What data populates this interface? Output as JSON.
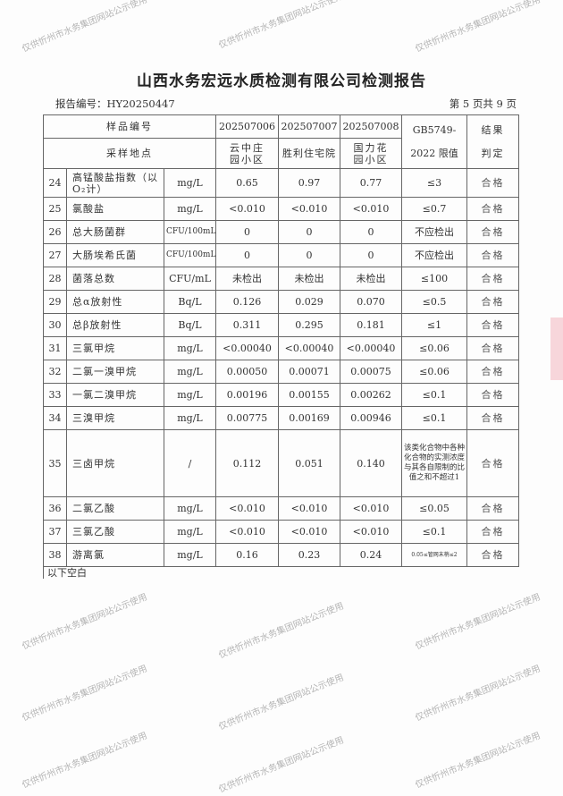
{
  "title": "山西水务宏远水质检测有限公司检测报告",
  "report_no": "报告编号：HY20250447",
  "page_no": "第 5 页共 9 页",
  "header": {
    "sample_no": "样品编号",
    "site": "采样地点",
    "samples": [
      "202507006",
      "202507007",
      "202507008"
    ],
    "sites": [
      "云中庄园小区",
      "胜利住宅院",
      "国力花园小区"
    ],
    "limit_1": "GB5749-",
    "limit_2": "2022 限值",
    "result_1": "结果",
    "result_2": "判定"
  },
  "rows": [
    {
      "no": "24",
      "item": "高锰酸盐指数（以O₂计）",
      "unit": "mg/L",
      "v": [
        "0.65",
        "0.97",
        "0.77"
      ],
      "limit": "≤3",
      "result": "合格"
    },
    {
      "no": "25",
      "item": "氯酸盐",
      "unit": "mg/L",
      "v": [
        "<0.010",
        "<0.010",
        "<0.010"
      ],
      "limit": "≤0.7",
      "result": "合格"
    },
    {
      "no": "26",
      "item": "总大肠菌群",
      "unit": "CFU/100mL",
      "v": [
        "0",
        "0",
        "0"
      ],
      "limit": "不应检出",
      "result": "合格"
    },
    {
      "no": "27",
      "item": "大肠埃希氏菌",
      "unit": "CFU/100mL",
      "v": [
        "0",
        "0",
        "0"
      ],
      "limit": "不应检出",
      "result": "合格"
    },
    {
      "no": "28",
      "item": "菌落总数",
      "unit": "CFU/mL",
      "v": [
        "未检出",
        "未检出",
        "未检出"
      ],
      "limit": "≤100",
      "result": "合格"
    },
    {
      "no": "29",
      "item": "总α放射性",
      "unit": "Bq/L",
      "v": [
        "0.126",
        "0.029",
        "0.070"
      ],
      "limit": "≤0.5",
      "result": "合格"
    },
    {
      "no": "30",
      "item": "总β放射性",
      "unit": "Bq/L",
      "v": [
        "0.311",
        "0.295",
        "0.181"
      ],
      "limit": "≤1",
      "result": "合格"
    },
    {
      "no": "31",
      "item": "三氯甲烷",
      "unit": "mg/L",
      "v": [
        "<0.00040",
        "<0.00040",
        "<0.00040"
      ],
      "limit": "≤0.06",
      "result": "合格"
    },
    {
      "no": "32",
      "item": "二氯一溴甲烷",
      "unit": "mg/L",
      "v": [
        "0.00050",
        "0.00071",
        "0.00075"
      ],
      "limit": "≤0.06",
      "result": "合格"
    },
    {
      "no": "33",
      "item": "一氯二溴甲烷",
      "unit": "mg/L",
      "v": [
        "0.00196",
        "0.00155",
        "0.00262"
      ],
      "limit": "≤0.1",
      "result": "合格"
    },
    {
      "no": "34",
      "item": "三溴甲烷",
      "unit": "mg/L",
      "v": [
        "0.00775",
        "0.00169",
        "0.00946"
      ],
      "limit": "≤0.1",
      "result": "合格"
    },
    {
      "no": "35",
      "item": "三卤甲烷",
      "unit": "/",
      "v": [
        "0.112",
        "0.051",
        "0.140"
      ],
      "limit": "该类化合物中各种化合物的实测浓度与其各自限制的比值之和不超过1",
      "result": "合格"
    },
    {
      "no": "36",
      "item": "二氯乙酸",
      "unit": "mg/L",
      "v": [
        "<0.010",
        "<0.010",
        "<0.010"
      ],
      "limit": "≤0.05",
      "result": "合格"
    },
    {
      "no": "37",
      "item": "三氯乙酸",
      "unit": "mg/L",
      "v": [
        "<0.010",
        "<0.010",
        "<0.010"
      ],
      "limit": "≤0.1",
      "result": "合格"
    },
    {
      "no": "38",
      "item": "游离氯",
      "unit": "mg/L",
      "v": [
        "0.16",
        "0.23",
        "0.24"
      ],
      "limit": "0.05≤管网末梢≤2",
      "result": "合格"
    }
  ],
  "footer": "以下空白",
  "watermark": "仅供忻州市水务集团网站公示使用"
}
